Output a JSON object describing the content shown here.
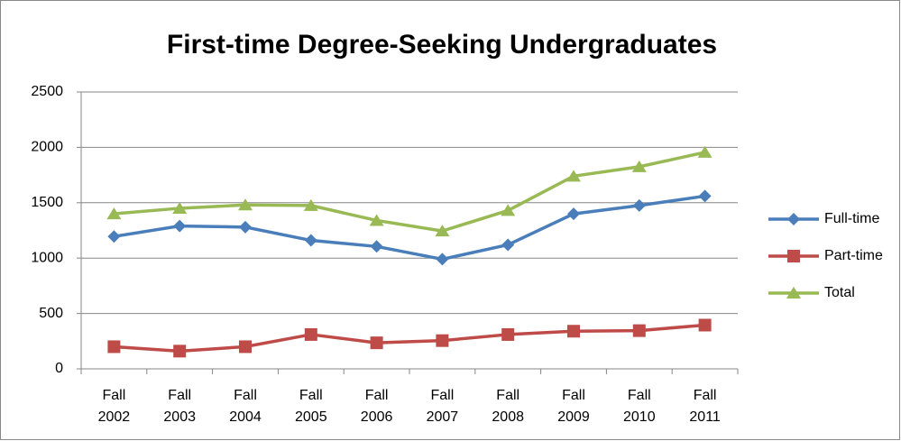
{
  "chart_data": {
    "type": "line",
    "title": "First-time Degree-Seeking Undergraduates",
    "categories": [
      "Fall 2002",
      "Fall 2003",
      "Fall 2004",
      "Fall 2005",
      "Fall 2006",
      "Fall 2007",
      "Fall 2008",
      "Fall 2009",
      "Fall 2010",
      "Fall 2011"
    ],
    "series": [
      {
        "name": "Full-time",
        "color": "#4a7ebb",
        "marker": "diamond",
        "values": [
          1195,
          1290,
          1280,
          1160,
          1105,
          990,
          1120,
          1400,
          1475,
          1560
        ]
      },
      {
        "name": "Part-time",
        "color": "#be4b48",
        "marker": "square",
        "values": [
          200,
          160,
          200,
          310,
          235,
          255,
          310,
          340,
          345,
          395
        ]
      },
      {
        "name": "Total",
        "color": "#98b954",
        "marker": "triangle",
        "values": [
          1400,
          1450,
          1480,
          1475,
          1340,
          1245,
          1430,
          1740,
          1825,
          1955
        ]
      }
    ],
    "ylim": [
      0,
      2500
    ],
    "yticks": [
      0,
      500,
      1000,
      1500,
      2000,
      2500
    ],
    "grid": true,
    "legend": "right"
  }
}
